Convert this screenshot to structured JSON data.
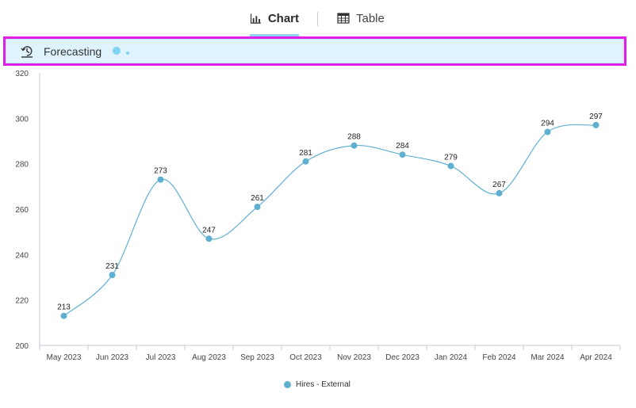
{
  "tabs": {
    "chart_label": "Chart",
    "table_label": "Table"
  },
  "banner": {
    "label": "Forecasting"
  },
  "colors": {
    "series": "#5fb0d0",
    "banner_border": "#e21fe6",
    "banner_bg": "#def3fb",
    "tab_active_underline": "#8fd4f0"
  },
  "chart_data": {
    "type": "line",
    "categories": [
      "May 2023",
      "Jun 2023",
      "Jul 2023",
      "Aug 2023",
      "Sep 2023",
      "Oct 2023",
      "Nov 2023",
      "Dec 2023",
      "Jan 2024",
      "Feb 2024",
      "Mar 2024",
      "Apr 2024"
    ],
    "series": [
      {
        "name": "Hires - External",
        "values": [
          213,
          231,
          273,
          247,
          261,
          281,
          288,
          284,
          279,
          267,
          294,
          297
        ]
      }
    ],
    "ylim": [
      200,
      320
    ],
    "yticks": [
      200,
      220,
      240,
      260,
      280,
      300,
      320
    ],
    "smooth": true,
    "data_labels": true,
    "legend_position": "bottom-center",
    "grid": false
  }
}
